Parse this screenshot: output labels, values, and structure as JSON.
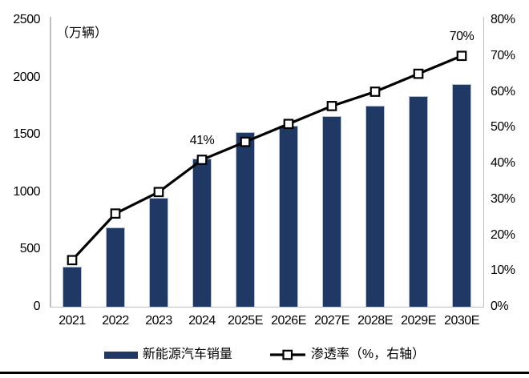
{
  "chart_data": {
    "type": "bar",
    "combo": "bar+line",
    "title": "",
    "categories": [
      "2021",
      "2022",
      "2023",
      "2024",
      "2025E",
      "2026E",
      "2027E",
      "2028E",
      "2029E",
      "2030E"
    ],
    "series": [
      {
        "name": "新能源汽车销量",
        "type": "bar",
        "axis": "left",
        "color": "#1F3864",
        "values": [
          350,
          690,
          950,
          1290,
          1520,
          1580,
          1660,
          1750,
          1840,
          1940
        ]
      },
      {
        "name": "渗透率（%，右轴）",
        "type": "line",
        "axis": "right",
        "color": "#000000",
        "marker": "open-square",
        "values": [
          13,
          26,
          32,
          41,
          46,
          51,
          56,
          60,
          65,
          70
        ]
      }
    ],
    "left_axis": {
      "unit_label": "（万辆）",
      "min": 0,
      "max": 2500,
      "step": 500,
      "ticks": [
        "2500",
        "2000",
        "1500",
        "1000",
        "500",
        "0"
      ]
    },
    "right_axis": {
      "min": 0,
      "max": 80,
      "step": 10,
      "ticks": [
        "80%",
        "70%",
        "60%",
        "50%",
        "40%",
        "30%",
        "20%",
        "10%",
        "0%"
      ]
    },
    "annotations": [
      {
        "category": "2024",
        "series": "line",
        "text": "41%"
      },
      {
        "category": "2030E",
        "series": "line",
        "text": "70%"
      }
    ],
    "legend": [
      {
        "label": "新能源汽车销量",
        "swatch": "bar"
      },
      {
        "label": "渗透率（%，右轴）",
        "swatch": "line-marker"
      }
    ],
    "grid": false,
    "legend_position": "bottom"
  },
  "colors": {
    "bar": "#1F3864",
    "bar_outline": "#b7c1d6",
    "line": "#000000",
    "marker_fill": "#ffffff",
    "axis_line": "#bfbfbf",
    "text": "#000000",
    "bottom_rule": "#000000"
  }
}
